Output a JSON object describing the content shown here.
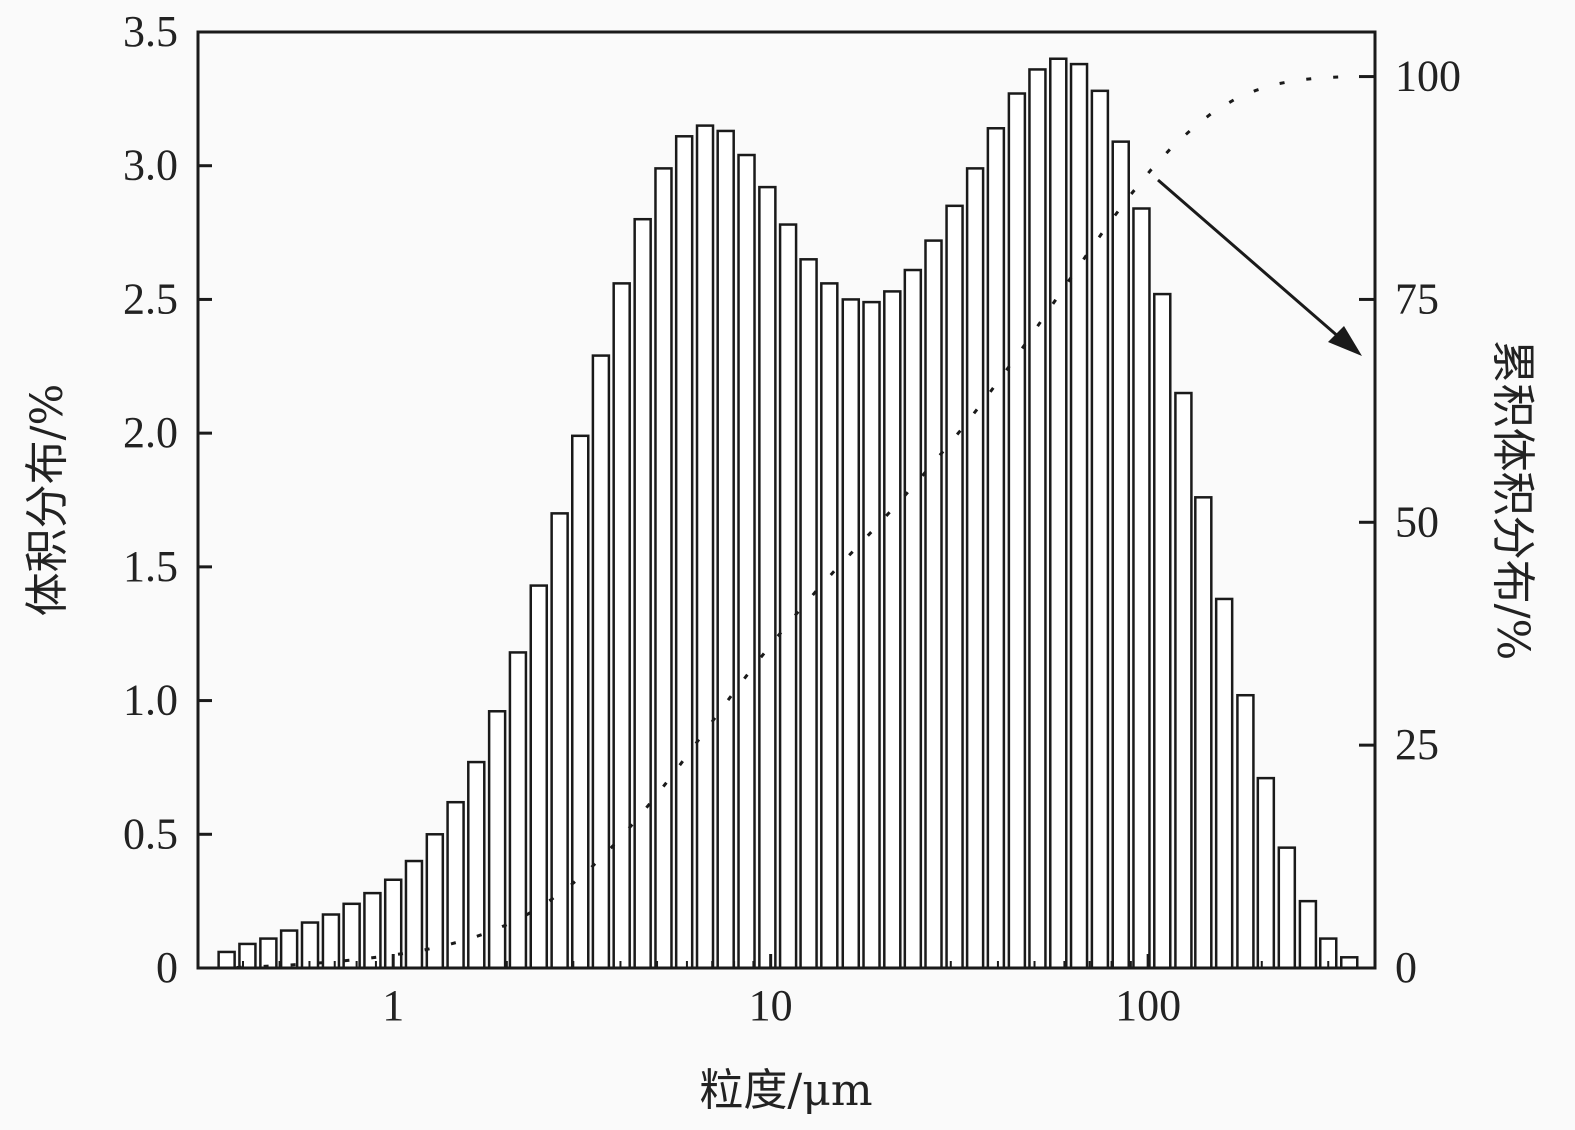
{
  "chart_data": {
    "type": "bar",
    "title": "",
    "xlabel": "粒度/μm",
    "ylabel": "体积分布/%",
    "y2label": "累积体积分布/%",
    "xscale": "log",
    "xlim": [
      0.304,
      399
    ],
    "ylim": [
      0,
      3.5
    ],
    "y2lim": [
      0,
      105
    ],
    "x_ticks": [
      {
        "value": 1,
        "label": "1"
      },
      {
        "value": 10,
        "label": "10"
      },
      {
        "value": 100,
        "label": "100"
      }
    ],
    "y_ticks": [
      {
        "value": 0,
        "label": "0"
      },
      {
        "value": 0.5,
        "label": "0.5"
      },
      {
        "value": 1.0,
        "label": "1.0"
      },
      {
        "value": 1.5,
        "label": "1.5"
      },
      {
        "value": 2.0,
        "label": "2.0"
      },
      {
        "value": 2.5,
        "label": "2.5"
      },
      {
        "value": 3.0,
        "label": "3.0"
      },
      {
        "value": 3.5,
        "label": "3.5"
      }
    ],
    "y2_ticks": [
      {
        "value": 0,
        "label": "0"
      },
      {
        "value": 25,
        "label": "25"
      },
      {
        "value": 50,
        "label": "50"
      },
      {
        "value": 75,
        "label": "75"
      },
      {
        "value": 100,
        "label": "100"
      }
    ],
    "grid": false,
    "x": [
      0.362,
      0.411,
      0.467,
      0.53,
      0.602,
      0.684,
      0.776,
      0.881,
      1.0,
      1.135,
      1.289,
      1.463,
      1.66,
      1.885,
      2.14,
      2.43,
      2.76,
      3.13,
      3.55,
      4.03,
      4.58,
      5.2,
      5.9,
      6.7,
      7.6,
      8.63,
      9.8,
      11.12,
      12.6,
      14.3,
      16.3,
      18.5,
      21.0,
      23.8,
      27.0,
      30.7,
      34.8,
      39.5,
      44.9,
      50.9,
      57.8,
      65.6,
      74.5,
      84.6,
      96.0,
      109,
      124,
      140,
      159,
      181,
      205,
      233,
      265,
      300,
      341
    ],
    "series": [
      {
        "name": "体积分布",
        "type": "bar",
        "axis": "left",
        "values": [
          0.06,
          0.09,
          0.11,
          0.14,
          0.17,
          0.2,
          0.24,
          0.28,
          0.33,
          0.4,
          0.5,
          0.62,
          0.77,
          0.96,
          1.18,
          1.43,
          1.7,
          1.99,
          2.29,
          2.56,
          2.8,
          2.99,
          3.11,
          3.15,
          3.13,
          3.04,
          2.92,
          2.78,
          2.65,
          2.56,
          2.5,
          2.49,
          2.53,
          2.61,
          2.72,
          2.85,
          2.99,
          3.14,
          3.27,
          3.36,
          3.4,
          3.38,
          3.28,
          3.09,
          2.84,
          2.52,
          2.15,
          1.76,
          1.38,
          1.02,
          0.71,
          0.45,
          0.25,
          0.11,
          0.04
        ]
      },
      {
        "name": "累积体积分布",
        "type": "line",
        "style": "dotted",
        "axis": "right",
        "values": [
          0.06,
          0.15,
          0.26,
          0.4,
          0.57,
          0.77,
          1.01,
          1.29,
          1.62,
          2.02,
          2.52,
          3.14,
          3.91,
          4.87,
          6.05,
          7.48,
          9.18,
          11.17,
          13.46,
          16.02,
          18.82,
          21.81,
          24.92,
          28.07,
          31.2,
          34.24,
          37.16,
          39.94,
          42.59,
          45.15,
          47.65,
          50.14,
          52.67,
          55.28,
          58.0,
          60.85,
          63.84,
          66.98,
          70.25,
          73.61,
          77.01,
          80.39,
          83.67,
          86.76,
          89.6,
          92.12,
          94.27,
          96.03,
          97.41,
          98.43,
          99.14,
          99.59,
          99.84,
          99.95,
          100
        ]
      }
    ],
    "annotations": [
      {
        "type": "arrow",
        "from_series": "累积体积分布",
        "points_to": "right-axis"
      }
    ],
    "colors": {
      "bar_fill": "#ffffff",
      "stroke": "#1a1a1a",
      "background": "#fafafa"
    }
  }
}
